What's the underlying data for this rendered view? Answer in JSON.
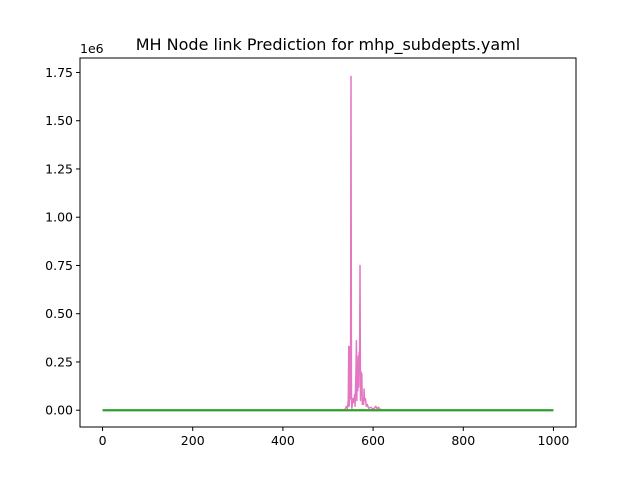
{
  "chart_data": {
    "type": "line",
    "title": "MH Node link Prediction for mhp_subdepts.yaml",
    "xlabel": "",
    "ylabel": "",
    "y_offset_label": "1e6",
    "xlim": [
      -50,
      1050
    ],
    "ylim": [
      -0.087,
      1.825
    ],
    "x_ticks": [
      0,
      200,
      400,
      600,
      800,
      1000
    ],
    "x_tick_labels": [
      "0",
      "200",
      "400",
      "600",
      "800",
      "1000"
    ],
    "y_ticks": [
      0.0,
      0.25,
      0.5,
      0.75,
      1.0,
      1.25,
      1.5,
      1.75
    ],
    "y_tick_labels": [
      "0.00",
      "0.25",
      "0.50",
      "0.75",
      "1.00",
      "1.25",
      "1.50",
      "1.75"
    ],
    "grid": false,
    "series": [
      {
        "color": "#e377c2",
        "points": [
          [
            0,
            0
          ],
          [
            535,
            0
          ],
          [
            538,
            0.005
          ],
          [
            541,
            0.02
          ],
          [
            543,
            0.01
          ],
          [
            545,
            0.05
          ],
          [
            546,
            0.33
          ],
          [
            547,
            0.02
          ],
          [
            549,
            0.33
          ],
          [
            550,
            0.06
          ],
          [
            551,
            1.73
          ],
          [
            552,
            0.05
          ],
          [
            553,
            0.01
          ],
          [
            555,
            0.06
          ],
          [
            557,
            0.04
          ],
          [
            559,
            0.08
          ],
          [
            560,
            0.02
          ],
          [
            562,
            0.2
          ],
          [
            563,
            0.36
          ],
          [
            564,
            0.05
          ],
          [
            565,
            0.25
          ],
          [
            566,
            0.1
          ],
          [
            567,
            0.28
          ],
          [
            568,
            0.12
          ],
          [
            569,
            0.3
          ],
          [
            570,
            0.2
          ],
          [
            571,
            0.75
          ],
          [
            572,
            0.05
          ],
          [
            573,
            0.2
          ],
          [
            574,
            0.08
          ],
          [
            575,
            0.19
          ],
          [
            576,
            0.03
          ],
          [
            578,
            0.06
          ],
          [
            579,
            0.03
          ],
          [
            580,
            0.11
          ],
          [
            581,
            0.05
          ],
          [
            583,
            0.06
          ],
          [
            585,
            0.02
          ],
          [
            587,
            0.03
          ],
          [
            590,
            0.01
          ],
          [
            595,
            0.015
          ],
          [
            600,
            0.005
          ],
          [
            603,
            0.01
          ],
          [
            606,
            0.02
          ],
          [
            609,
            0.008
          ],
          [
            612,
            0.015
          ],
          [
            615,
            0.005
          ],
          [
            620,
            0.002
          ],
          [
            630,
            0
          ],
          [
            1000,
            0
          ]
        ]
      },
      {
        "color": "#17becf",
        "points": [
          [
            0,
            0
          ],
          [
            1000,
            0
          ]
        ]
      },
      {
        "color": "#bcbd22",
        "points": [
          [
            0,
            0
          ],
          [
            1000,
            0
          ]
        ]
      },
      {
        "color": "#2ca02c",
        "points": [
          [
            0,
            0
          ],
          [
            1000,
            0
          ]
        ]
      }
    ]
  }
}
